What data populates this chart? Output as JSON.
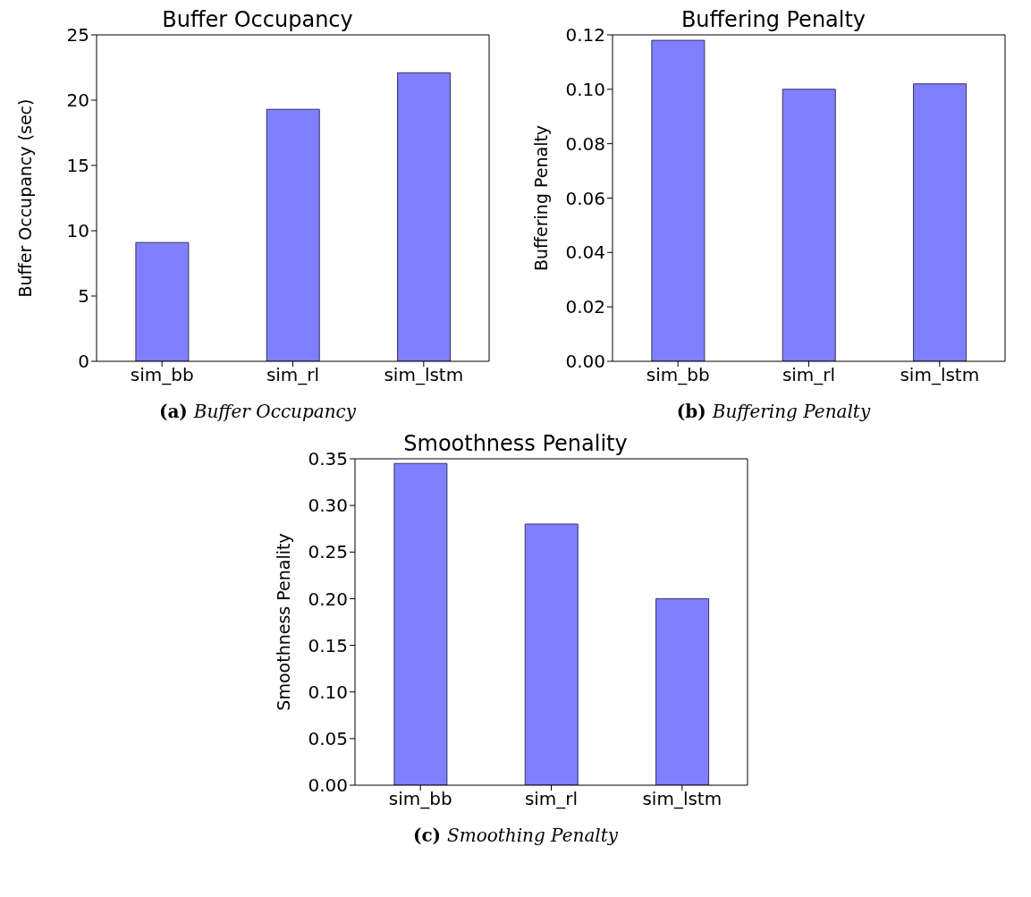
{
  "chart_data": [
    {
      "type": "bar",
      "title": "Buffer Occupancy",
      "ylabel": "Buffer Occupancy (sec)",
      "categories": [
        "sim_bb",
        "sim_rl",
        "sim_lstm"
      ],
      "values": [
        9.1,
        19.3,
        22.1
      ],
      "color": "#7f7fff",
      "ylim": [
        0,
        25
      ],
      "yticks": [
        0,
        5,
        10,
        15,
        20,
        25
      ],
      "annotations": [
        "(a) Buffer Occupancy"
      ]
    },
    {
      "type": "bar",
      "title": "Buffering Penalty",
      "ylabel": "Buffering Penalty",
      "categories": [
        "sim_bb",
        "sim_rl",
        "sim_lstm"
      ],
      "values": [
        0.118,
        0.1,
        0.102
      ],
      "color": "#7f7fff",
      "ylim": [
        0,
        0.12
      ],
      "yticks": [
        {
          "value": 0,
          "label": "0.00"
        },
        {
          "value": 0.02,
          "label": "0.02"
        },
        {
          "value": 0.04,
          "label": "0.04"
        },
        {
          "value": 0.06,
          "label": "0.06"
        },
        {
          "value": 0.08,
          "label": "0.08"
        },
        {
          "value": 0.1,
          "label": "0.10"
        },
        {
          "value": 0.12,
          "label": "0.12"
        }
      ],
      "annotations": [
        "(b) Buffering Penalty"
      ]
    },
    {
      "type": "bar",
      "title": "Smoothness Penality",
      "ylabel": "Smoothness Penality",
      "categories": [
        "sim_bb",
        "sim_rl",
        "sim_lstm"
      ],
      "values": [
        0.345,
        0.28,
        0.2
      ],
      "color": "#7f7fff",
      "ylim": [
        0,
        0.35
      ],
      "yticks": [
        {
          "value": 0,
          "label": "0.00"
        },
        {
          "value": 0.05,
          "label": "0.05"
        },
        {
          "value": 0.1,
          "label": "0.10"
        },
        {
          "value": 0.15,
          "label": "0.15"
        },
        {
          "value": 0.2,
          "label": "0.20"
        },
        {
          "value": 0.25,
          "label": "0.25"
        },
        {
          "value": 0.3,
          "label": "0.30"
        },
        {
          "value": 0.35,
          "label": "0.35"
        }
      ],
      "annotations": [
        "(c) Smoothing Penalty"
      ]
    }
  ]
}
